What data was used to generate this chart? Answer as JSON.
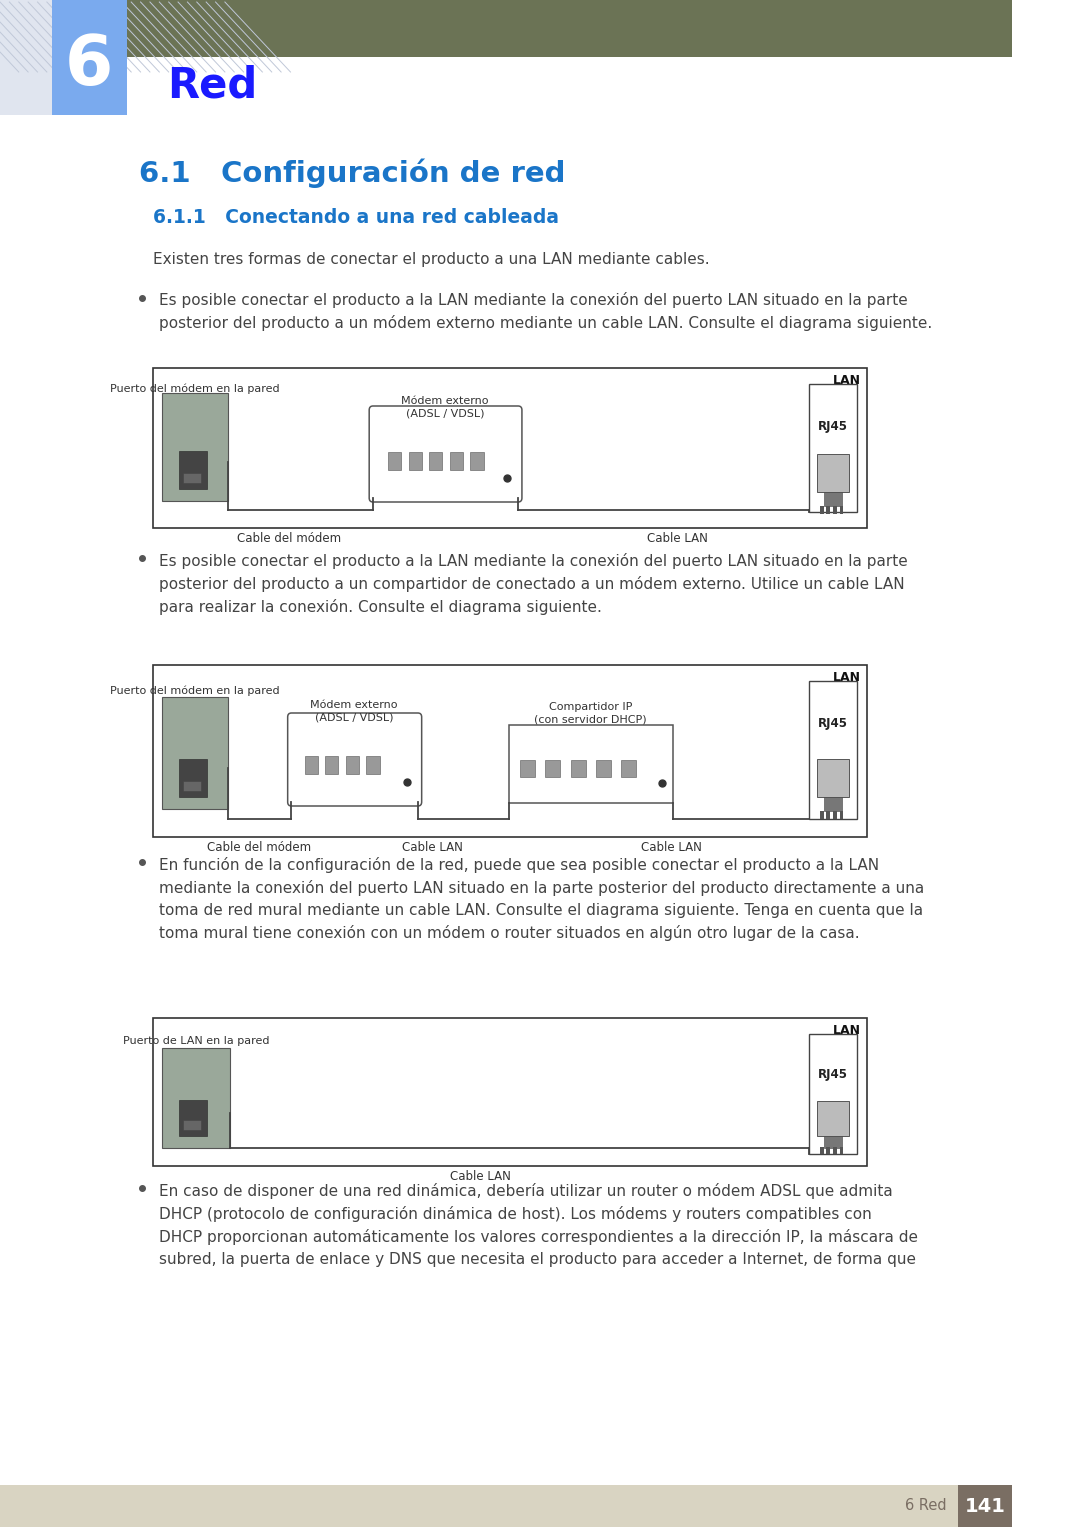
{
  "page_bg": "#ffffff",
  "header_bar_color": "#6b7355",
  "chapter_box_color": "#7aaaee",
  "chapter_number": "6",
  "chapter_title": "Red",
  "chapter_title_color": "#1a1aff",
  "section_title": "6.1   Configuración de red",
  "section_title_color": "#1a75c8",
  "subsection_title": "6.1.1   Conectando a una red cableada",
  "subsection_title_color": "#1a75c8",
  "intro_text": "Existen tres formas de conectar el producto a una LAN mediante cables.",
  "bullet1_text": "Es posible conectar el producto a la LAN mediante la conexión del puerto LAN situado en la parte\nposterior del producto a un módem externo mediante un cable LAN. Consulte el diagrama siguiente.",
  "bullet2_text": "Es posible conectar el producto a la LAN mediante la conexión del puerto LAN situado en la parte\nposterior del producto a un compartidor de conectado a un módem externo. Utilice un cable LAN\npara realizar la conexión. Consulte el diagrama siguiente.",
  "bullet3_text": "En función de la configuración de la red, puede que sea posible conectar el producto a la LAN\nmediante la conexión del puerto LAN situado en la parte posterior del producto directamente a una\ntoma de red mural mediante un cable LAN. Consulte el diagrama siguiente. Tenga en cuenta que la\ntoma mural tiene conexión con un módem o router situados en algún otro lugar de la casa.",
  "bullet4_text": "En caso de disponer de una red dinámica, debería utilizar un router o módem ADSL que admita\nDHCP (protocolo de configuración dinámica de host). Los módems y routers compatibles con\nDHCP proporcionan automáticamente los valores correspondientes a la dirección IP, la máscara de\nsubred, la puerta de enlace y DNS que necesita el producto para acceder a Internet, de forma que",
  "footer_bg": "#d9d4c2",
  "footer_number_bg": "#7a6e63",
  "footer_text": "6 Red",
  "footer_number": "141",
  "text_color": "#444444",
  "bullet_color": "#555555",
  "diagram_border": "#333333",
  "lan_label": "LAN",
  "rj45_label": "RJ45",
  "cable_modem_label": "Cable del módem",
  "cable_lan_label": "Cable LAN",
  "modem_port_label": "Puerto del módem en la pared",
  "external_modem_label": "Módem externo\n(ADSL / VDSL)",
  "compartidor_label": "Compartidor IP\n(con servidor DHCP)",
  "lan_port_label": "Puerto de LAN en la pared"
}
